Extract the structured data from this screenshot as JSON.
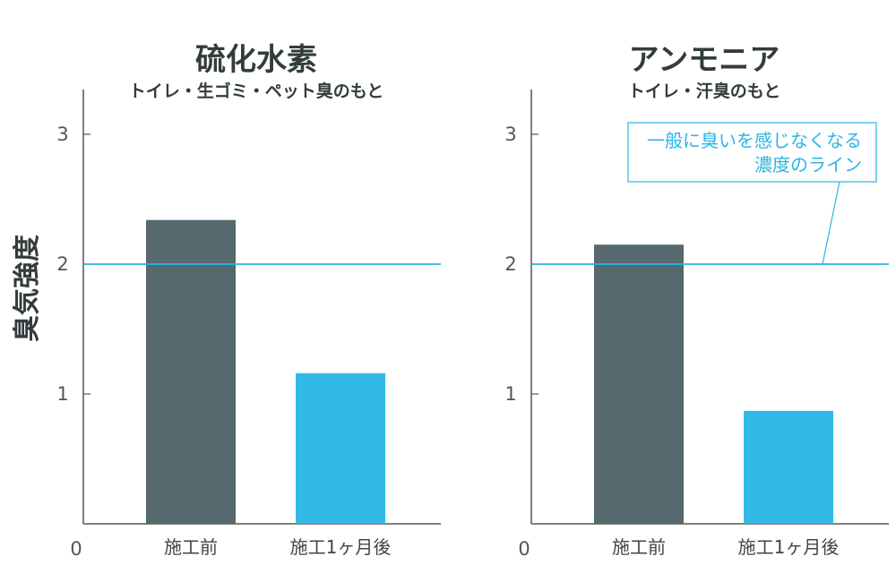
{
  "chart_data": [
    {
      "type": "bar",
      "title": "硫化水素",
      "subtitle": "トイレ・生ゴミ・ペット臭のもと",
      "ylabel": "臭気強度",
      "categories": [
        "施工前",
        "施工1ヶ月後"
      ],
      "values": [
        2.34,
        1.16
      ],
      "ylim": [
        0,
        3.3
      ],
      "yticks": [
        "0",
        "1",
        "2",
        "3"
      ],
      "threshold": 2,
      "colors": [
        "#55696e",
        "#32bae6"
      ],
      "threshold_color": "#29b6e6"
    },
    {
      "type": "bar",
      "title": "アンモニア",
      "subtitle": "トイレ・汗臭のもと",
      "ylabel": "",
      "categories": [
        "施工前",
        "施工1ヶ月後"
      ],
      "values": [
        2.15,
        0.87
      ],
      "ylim": [
        0,
        3.3
      ],
      "yticks": [
        "0",
        "1",
        "2",
        "3"
      ],
      "threshold": 2,
      "colors": [
        "#55696e",
        "#32bae6"
      ],
      "threshold_color": "#29b6e6",
      "annotation": [
        "一般に臭いを感じなくなる",
        "濃度のライン"
      ]
    }
  ]
}
